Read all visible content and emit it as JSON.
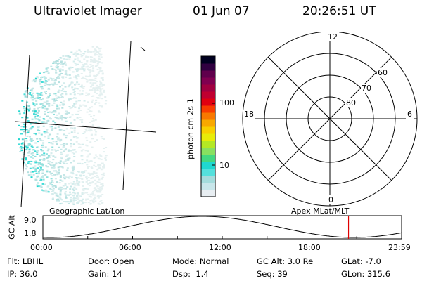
{
  "header": {
    "instrument": "Ultraviolet Imager",
    "date": "01 Jun 07",
    "time": "20:26:51 UT"
  },
  "colorbar": {
    "label": "photon cm-2s-1",
    "ticks": [
      "100",
      "10"
    ],
    "colors": [
      "#e8eef2",
      "#c8e6ea",
      "#a4dcdc",
      "#54e0dc",
      "#20d8d0",
      "#44d880",
      "#88e060",
      "#b4e824",
      "#e8ec08",
      "#f8d000",
      "#f8a800",
      "#f87800",
      "#f83c00",
      "#e00010",
      "#c00030",
      "#a00040",
      "#800050",
      "#60004c",
      "#300040",
      "#000020"
    ]
  },
  "polar": {
    "mlt_labels": {
      "top": "12",
      "left": "18",
      "right": "6",
      "bottom": "0"
    },
    "lat_labels": [
      "60",
      "70",
      "80"
    ]
  },
  "geo_labels": {
    "left": "Geographic Lat/Lon",
    "right": "Apex MLat/MLT"
  },
  "timeline": {
    "axis_label": "GC Alt",
    "y_ticks": [
      "9.0",
      "1.8"
    ],
    "x_ticks": [
      "00:00",
      "06:00",
      "12:00",
      "18:00",
      "23:59"
    ],
    "current_time_hours": 20.45,
    "marker_color": "#e00000"
  },
  "status": {
    "row1": [
      {
        "key": "Flt:",
        "val": "LBHL"
      },
      {
        "key": "Door:",
        "val": "Open"
      },
      {
        "key": "Mode:",
        "val": "Normal"
      },
      {
        "key": "GC Alt:",
        "val": "3.0 Re"
      },
      {
        "key": "GLat:",
        "val": "-7.0"
      }
    ],
    "row2": [
      {
        "key": "IP:",
        "val": "36.0"
      },
      {
        "key": "Gain:",
        "val": "14"
      },
      {
        "key": "Dsp:",
        "val": "1.4"
      },
      {
        "key": "Seq:",
        "val": "39"
      },
      {
        "key": "GLon:",
        "val": "315.6"
      }
    ]
  }
}
